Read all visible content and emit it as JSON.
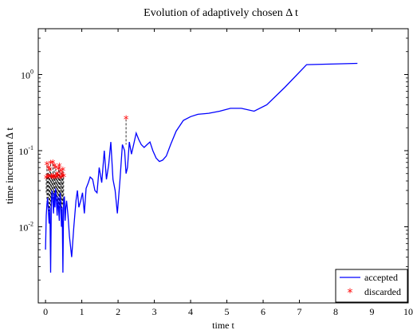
{
  "chart_data": {
    "type": "line",
    "title": "Evolution of adaptively chosen Δ t",
    "xlabel": "time t",
    "ylabel": "time increment Δ t",
    "xlim": [
      -0.2,
      10
    ],
    "ylim": [
      0.001,
      4
    ],
    "yscale": "log",
    "grid": false,
    "legend_position": "bottom-right",
    "x_ticks": [
      0,
      1,
      2,
      3,
      4,
      5,
      6,
      7,
      8,
      9,
      10
    ],
    "x_tick_labels": [
      "0",
      "1",
      "2",
      "3",
      "4",
      "5",
      "6",
      "7",
      "8",
      "9",
      "10"
    ],
    "y_ticks": [
      0.01,
      0.1,
      1
    ],
    "y_tick_labels": [
      {
        "base": "10",
        "exp": "-2"
      },
      {
        "base": "10",
        "exp": "-1"
      },
      {
        "base": "10",
        "exp": "0"
      }
    ],
    "series": [
      {
        "name": "accepted",
        "color": "#0000ff",
        "x": [
          0.0,
          0.02,
          0.04,
          0.06,
          0.08,
          0.1,
          0.12,
          0.14,
          0.16,
          0.18,
          0.2,
          0.22,
          0.24,
          0.26,
          0.28,
          0.3,
          0.32,
          0.34,
          0.36,
          0.38,
          0.4,
          0.42,
          0.44,
          0.46,
          0.48,
          0.5,
          0.52,
          0.54,
          0.56,
          0.58,
          0.62,
          0.66,
          0.72,
          0.78,
          0.84,
          0.88,
          0.92,
          0.97,
          1.02,
          1.07,
          1.12,
          1.18,
          1.23,
          1.3,
          1.36,
          1.42,
          1.48,
          1.55,
          1.62,
          1.68,
          1.74,
          1.8,
          1.86,
          1.92,
          1.98,
          2.05,
          2.12,
          2.18,
          2.22,
          2.26,
          2.31,
          2.37,
          2.43,
          2.5,
          2.57,
          2.64,
          2.72,
          2.8,
          2.88,
          2.96,
          3.05,
          3.14,
          3.23,
          3.33,
          3.45,
          3.6,
          3.8,
          4.0,
          4.2,
          4.5,
          4.8,
          5.1,
          5.4,
          5.75,
          6.1,
          6.6,
          7.2,
          8.6
        ],
        "y": [
          0.005,
          0.014,
          0.02,
          0.024,
          0.016,
          0.011,
          0.018,
          0.0025,
          0.02,
          0.03,
          0.022,
          0.015,
          0.028,
          0.018,
          0.032,
          0.022,
          0.014,
          0.025,
          0.017,
          0.012,
          0.028,
          0.02,
          0.01,
          0.018,
          0.0025,
          0.022,
          0.025,
          0.012,
          0.018,
          0.022,
          0.014,
          0.0075,
          0.004,
          0.01,
          0.022,
          0.03,
          0.018,
          0.022,
          0.028,
          0.015,
          0.032,
          0.038,
          0.045,
          0.042,
          0.03,
          0.028,
          0.06,
          0.038,
          0.1,
          0.042,
          0.065,
          0.13,
          0.042,
          0.03,
          0.015,
          0.04,
          0.12,
          0.1,
          0.05,
          0.06,
          0.13,
          0.09,
          0.12,
          0.17,
          0.14,
          0.12,
          0.11,
          0.12,
          0.13,
          0.1,
          0.08,
          0.072,
          0.075,
          0.085,
          0.12,
          0.18,
          0.25,
          0.28,
          0.3,
          0.31,
          0.33,
          0.36,
          0.36,
          0.33,
          0.4,
          0.68,
          1.35,
          1.4
        ]
      },
      {
        "name": "discarded",
        "color": "#ff0000",
        "marker": "*",
        "x": [
          0.02,
          0.04,
          0.06,
          0.08,
          0.1,
          0.12,
          0.14,
          0.16,
          0.18,
          0.2,
          0.22,
          0.24,
          0.26,
          0.28,
          0.3,
          0.32,
          0.34,
          0.36,
          0.38,
          0.4,
          0.42,
          0.44,
          0.46,
          0.48,
          0.5,
          2.22
        ],
        "y": [
          0.043,
          0.065,
          0.045,
          0.058,
          0.044,
          0.055,
          0.067,
          0.045,
          0.043,
          0.068,
          0.045,
          0.062,
          0.043,
          0.058,
          0.044,
          0.048,
          0.046,
          0.056,
          0.062,
          0.043,
          0.052,
          0.044,
          0.048,
          0.055,
          0.045,
          0.26
        ],
        "connect_to_accepted_y": [
          0.028,
          0.018,
          0.02,
          0.024,
          0.016,
          0.011,
          0.018,
          0.02,
          0.03,
          0.022,
          0.015,
          0.028,
          0.018,
          0.032,
          0.022,
          0.014,
          0.025,
          0.017,
          0.012,
          0.028,
          0.02,
          0.01,
          0.018,
          0.02,
          0.022,
          0.12
        ]
      }
    ]
  }
}
